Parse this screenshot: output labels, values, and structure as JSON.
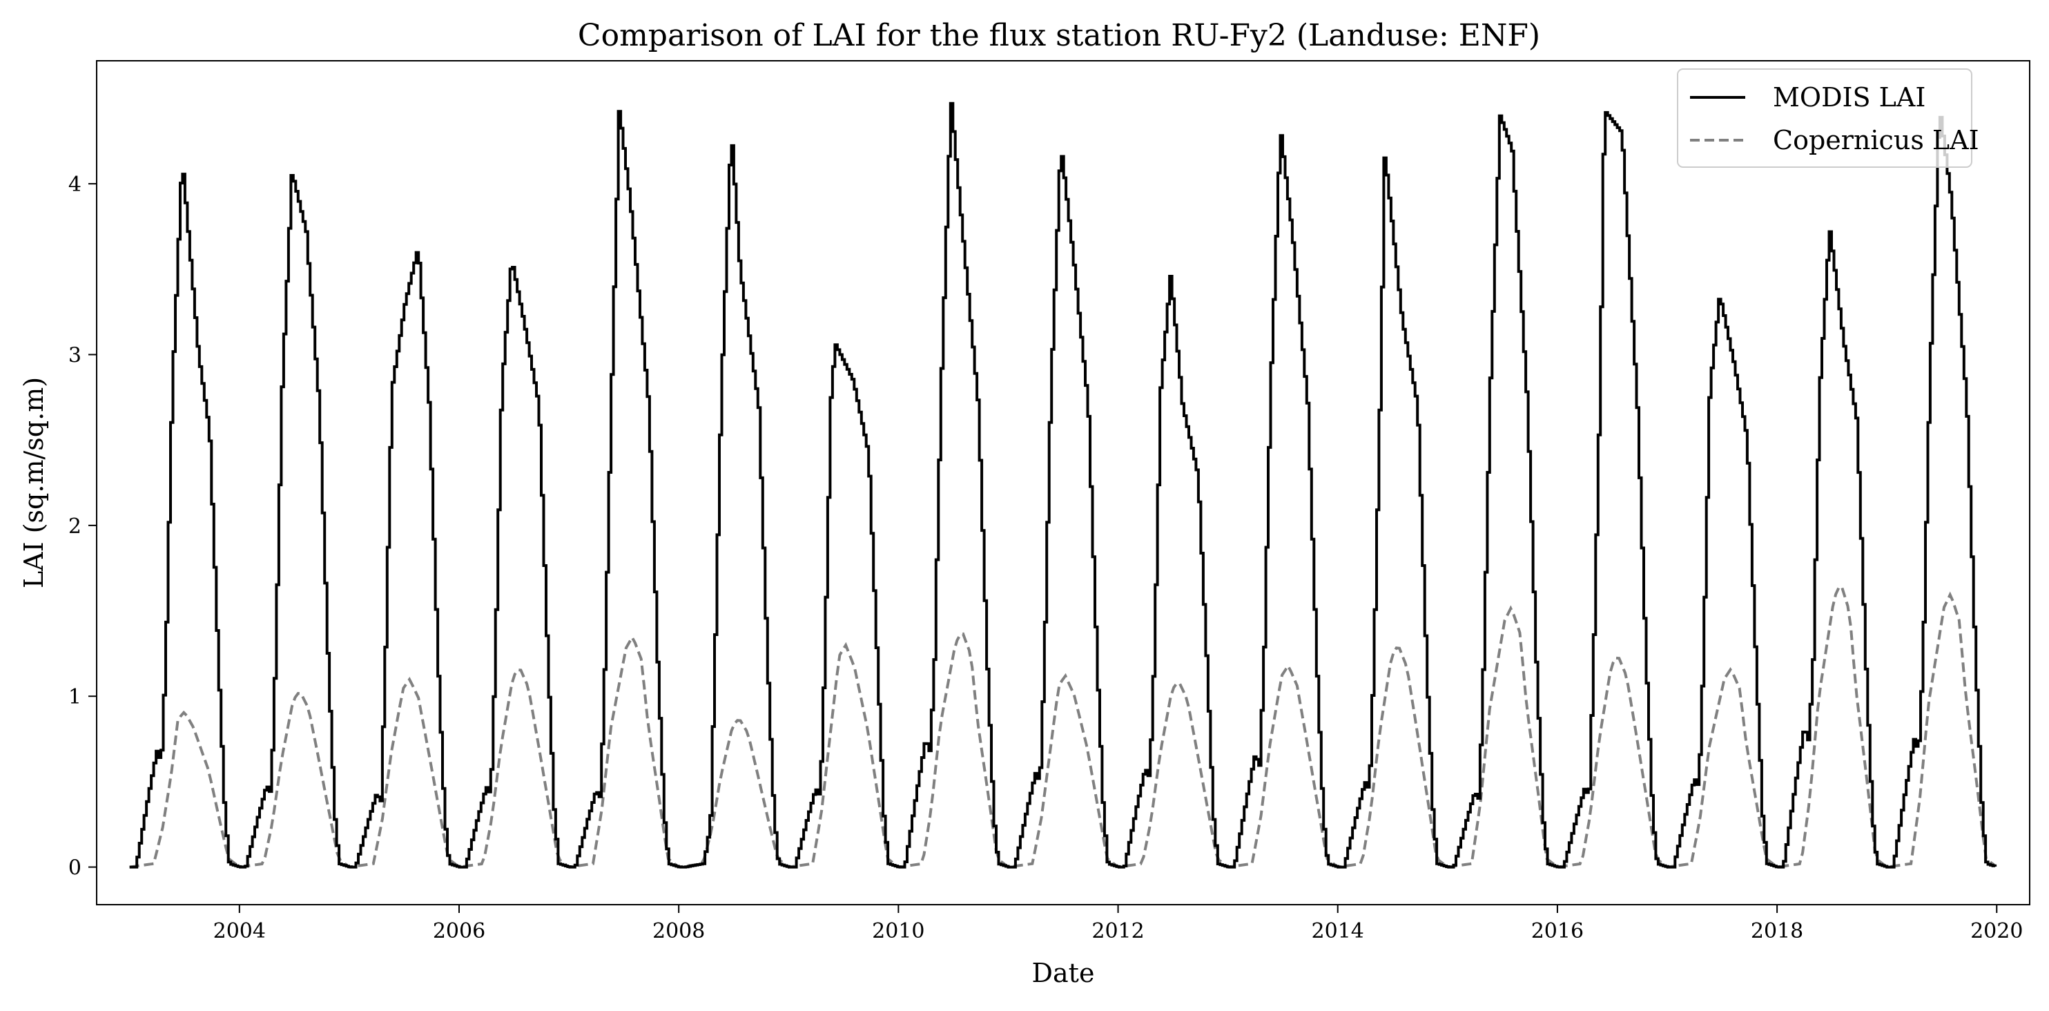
{
  "chart_data": {
    "type": "line",
    "title": "Comparison of LAI for the flux station RU-Fy2 (Landuse: ENF)",
    "xlabel": "Date",
    "ylabel": "LAI (sq.m/sq.m)",
    "xlim": [
      2002.7,
      2020.3
    ],
    "ylim": [
      -0.22,
      4.72
    ],
    "x_ticks": [
      2004,
      2006,
      2008,
      2010,
      2012,
      2014,
      2016,
      2018,
      2020
    ],
    "y_ticks": [
      0,
      1,
      2,
      3,
      4
    ],
    "grid": false,
    "legend_position": "top-right",
    "series": [
      {
        "name": "MODIS LAI",
        "color": "#000000",
        "style": "solid",
        "peaks": [
          {
            "year": 2003,
            "green_up": 0.68,
            "peak_time": 2003.47,
            "peak": 4.15,
            "shoulder_time": 2003.62,
            "shoulder": 3.0
          },
          {
            "year": 2004,
            "green_up": 0.48,
            "peak_time": 2004.47,
            "peak": 4.07,
            "shoulder_time": 2004.6,
            "shoulder": 3.72
          },
          {
            "year": 2005,
            "green_up": 0.43,
            "peak_time": 2005.62,
            "peak": 3.63,
            "shoulder_time": 2005.5,
            "shoulder": 3.3
          },
          {
            "year": 2006,
            "green_up": 0.47,
            "peak_time": 2006.47,
            "peak": 3.56,
            "shoulder_time": 2006.58,
            "shoulder": 3.2
          },
          {
            "year": 2007,
            "green_up": 0.45,
            "peak_time": 2007.45,
            "peak": 4.44,
            "shoulder_time": 2007.55,
            "shoulder": 3.9
          },
          {
            "year": 2008,
            "green_up": 0.0,
            "peak_time": 2008.47,
            "peak": 4.32,
            "shoulder_time": 2008.55,
            "shoulder": 3.5
          },
          {
            "year": 2009,
            "green_up": 0.46,
            "peak_time": 2009.42,
            "peak": 3.06,
            "shoulder_time": 2009.58,
            "shoulder": 2.85
          },
          {
            "year": 2010,
            "green_up": 0.75,
            "peak_time": 2010.47,
            "peak": 4.5,
            "shoulder_time": 2010.55,
            "shoulder": 3.9
          },
          {
            "year": 2011,
            "green_up": 0.55,
            "peak_time": 2011.47,
            "peak": 4.23,
            "shoulder_time": 2011.58,
            "shoulder": 3.6
          },
          {
            "year": 2012,
            "green_up": 0.58,
            "peak_time": 2012.47,
            "peak": 3.47,
            "shoulder_time": 2012.58,
            "shoulder": 2.7
          },
          {
            "year": 2013,
            "green_up": 0.66,
            "peak_time": 2013.47,
            "peak": 4.32,
            "shoulder_time": 2013.58,
            "shoulder": 3.7
          },
          {
            "year": 2014,
            "green_up": 0.5,
            "peak_time": 2014.42,
            "peak": 4.18,
            "shoulder_time": 2014.58,
            "shoulder": 3.2
          },
          {
            "year": 2015,
            "green_up": 0.44,
            "peak_time": 2015.47,
            "peak": 4.4,
            "shoulder_time": 2015.58,
            "shoulder": 4.2
          },
          {
            "year": 2016,
            "green_up": 0.46,
            "peak_time": 2016.42,
            "peak": 4.43,
            "shoulder_time": 2016.58,
            "shoulder": 4.3
          },
          {
            "year": 2017,
            "green_up": 0.52,
            "peak_time": 2017.47,
            "peak": 3.35,
            "shoulder_time": 2017.6,
            "shoulder": 2.95
          },
          {
            "year": 2018,
            "green_up": 0.82,
            "peak_time": 2018.47,
            "peak": 3.74,
            "shoulder_time": 2018.6,
            "shoulder": 3.07
          },
          {
            "year": 2019,
            "green_up": 0.75,
            "peak_time": 2019.47,
            "peak": 4.45,
            "shoulder_time": 2019.58,
            "shoulder": 3.9
          }
        ]
      },
      {
        "name": "Copernicus LAI",
        "color": "#808080",
        "style": "dashed",
        "peaks": [
          {
            "year": 2003,
            "peak_time": 2003.5,
            "peak": 0.91
          },
          {
            "year": 2004,
            "peak_time": 2004.55,
            "peak": 1.03
          },
          {
            "year": 2005,
            "peak_time": 2005.55,
            "peak": 1.1
          },
          {
            "year": 2006,
            "peak_time": 2006.55,
            "peak": 1.17
          },
          {
            "year": 2007,
            "peak_time": 2007.58,
            "peak": 1.35
          },
          {
            "year": 2008,
            "peak_time": 2008.55,
            "peak": 0.87
          },
          {
            "year": 2009,
            "peak_time": 2009.52,
            "peak": 1.3
          },
          {
            "year": 2010,
            "peak_time": 2010.58,
            "peak": 1.38
          },
          {
            "year": 2011,
            "peak_time": 2011.52,
            "peak": 1.12
          },
          {
            "year": 2012,
            "peak_time": 2012.55,
            "peak": 1.09
          },
          {
            "year": 2013,
            "peak_time": 2013.55,
            "peak": 1.18
          },
          {
            "year": 2014,
            "peak_time": 2014.55,
            "peak": 1.3
          },
          {
            "year": 2015,
            "peak_time": 2015.58,
            "peak": 1.52
          },
          {
            "year": 2016,
            "peak_time": 2016.55,
            "peak": 1.24
          },
          {
            "year": 2017,
            "peak_time": 2017.58,
            "peak": 1.16
          },
          {
            "year": 2018,
            "peak_time": 2018.58,
            "peak": 1.66
          },
          {
            "year": 2019,
            "peak_time": 2019.58,
            "peak": 1.6
          }
        ]
      }
    ]
  }
}
